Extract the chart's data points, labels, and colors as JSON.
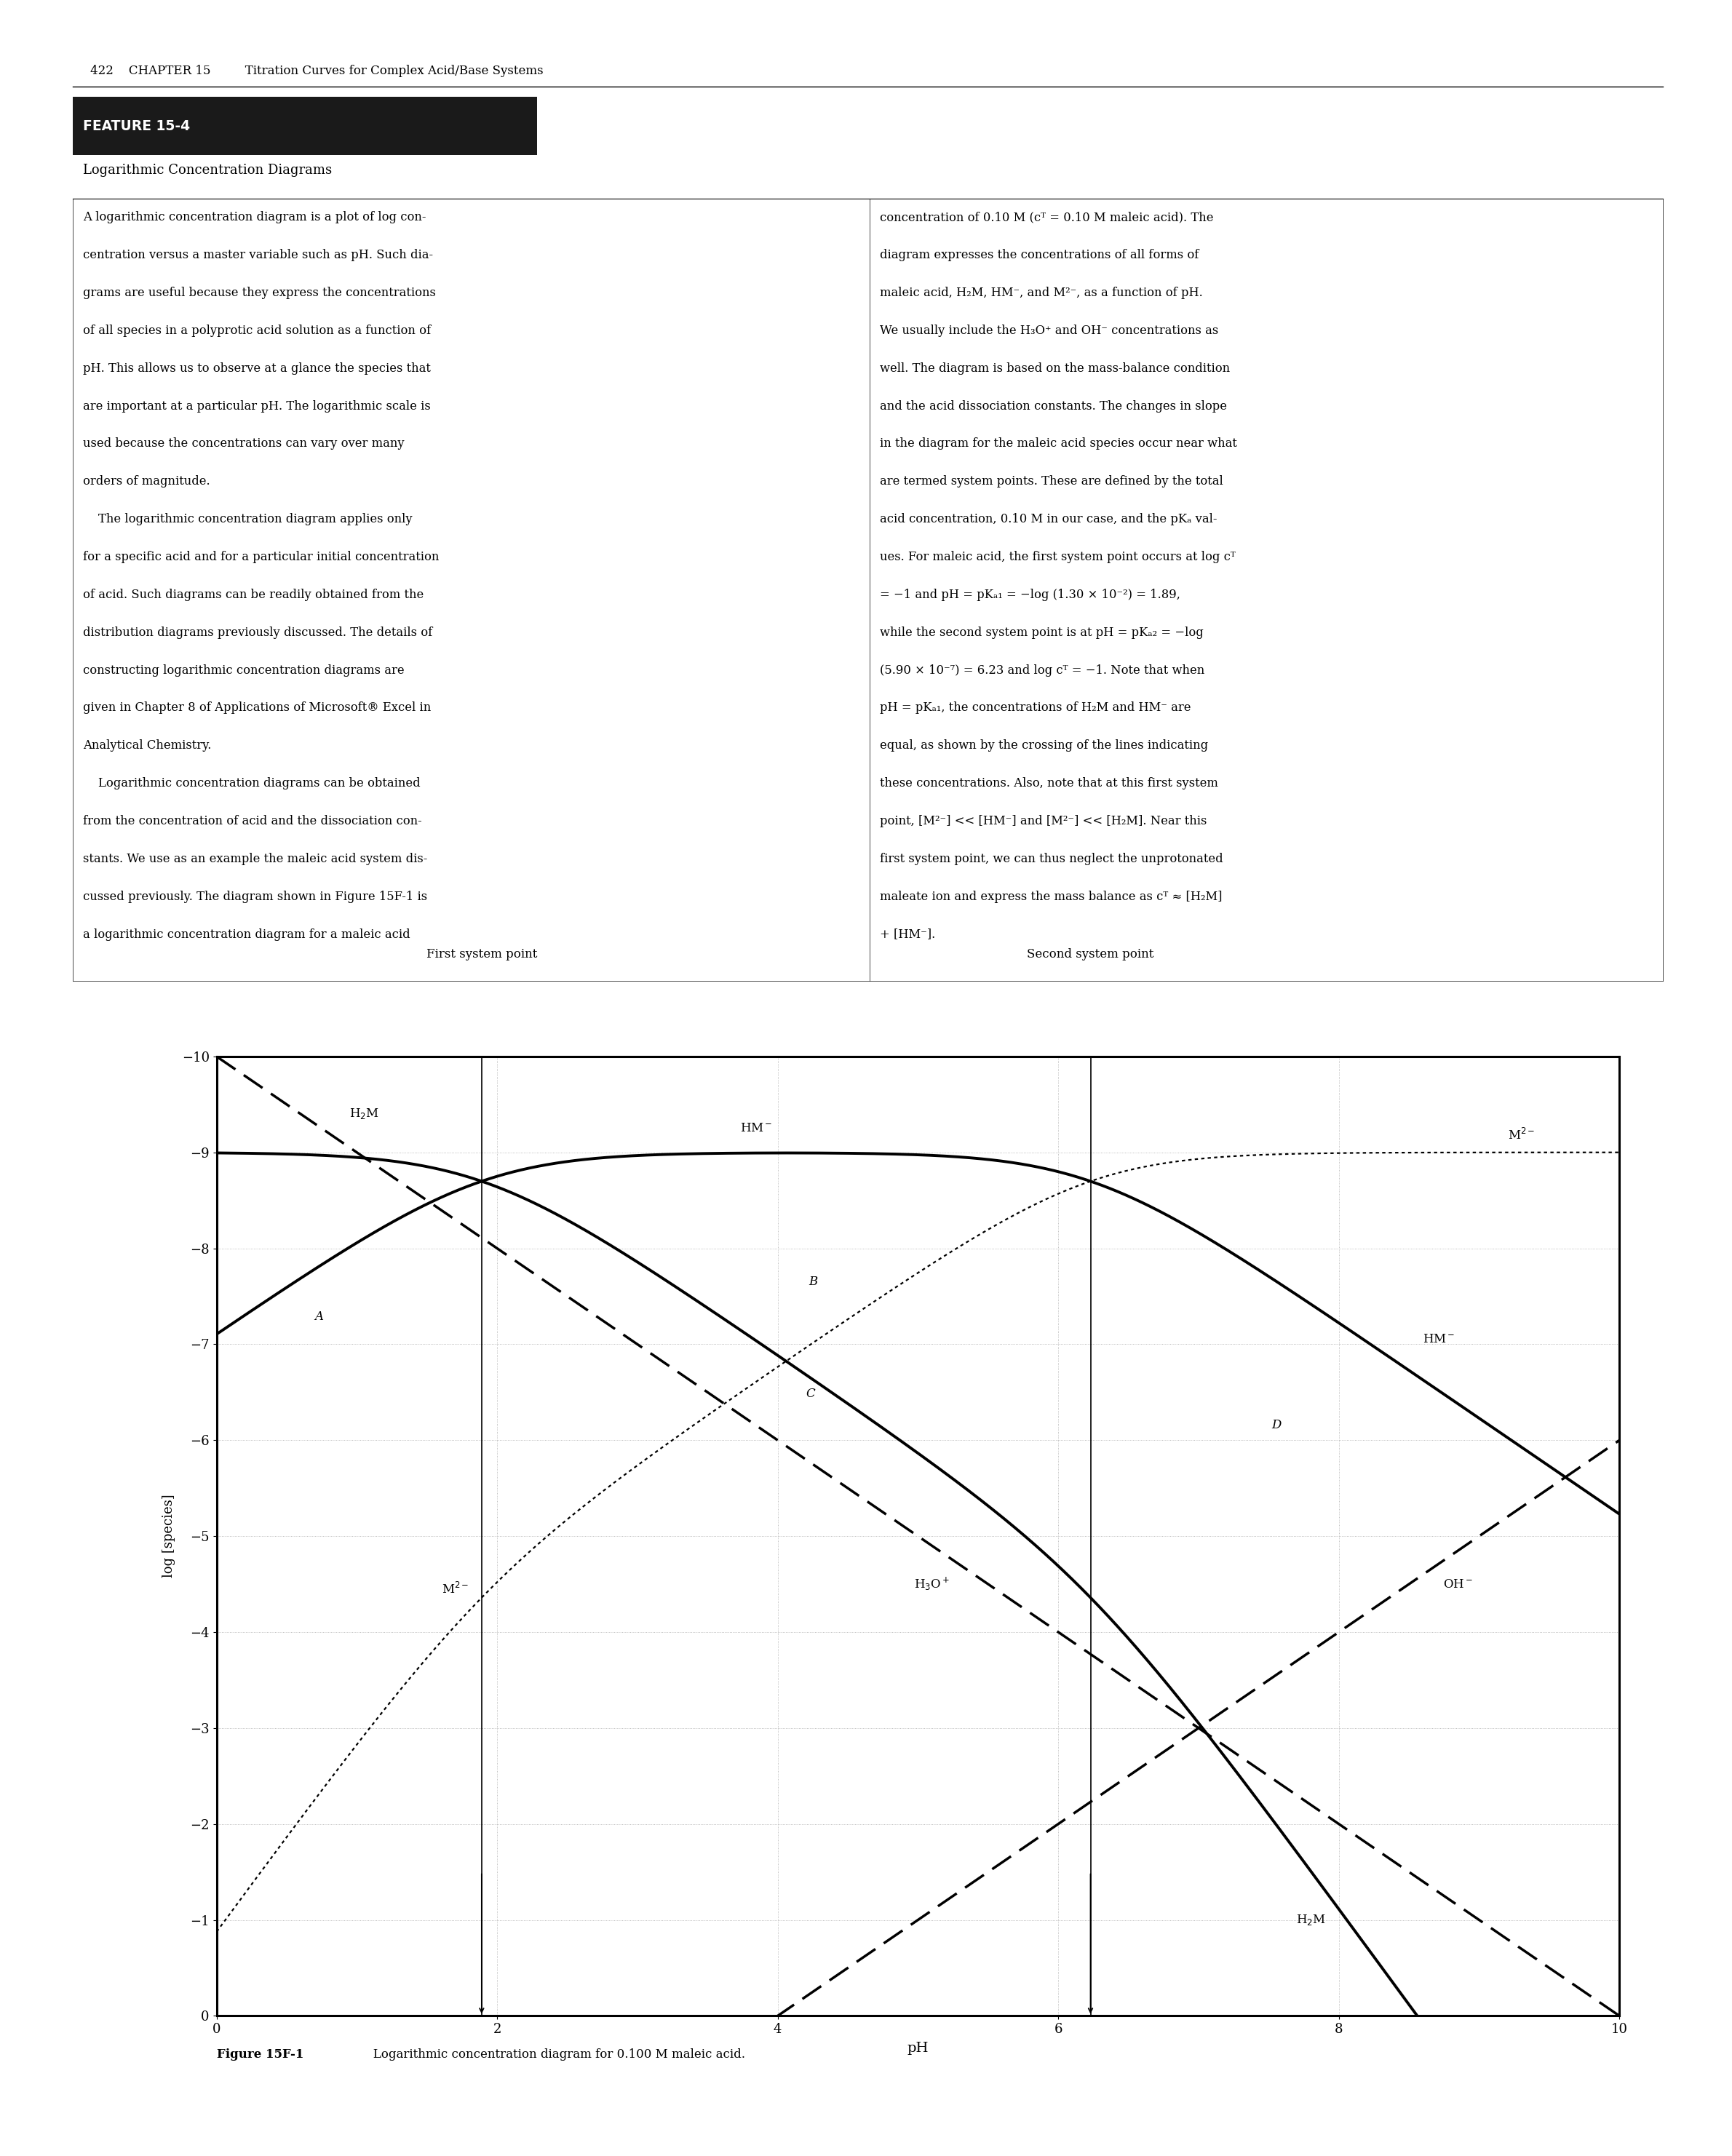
{
  "pKa1": 1.89,
  "pKa2": 6.23,
  "CT": 0.1,
  "Kw": 1e-14,
  "pH_min": 0,
  "pH_max": 10,
  "y_min": -10,
  "y_max": 0,
  "xlabel": "pH",
  "ylabel": "log [species]",
  "first_system_point_label": "First system point",
  "second_system_point_label": "Second system point",
  "page_header": "422    CHAPTER 15         Titration Curves for Complex Acid/Base Systems",
  "feature_box_label": "FEATURE 15-4",
  "feature_subtitle": "Logarithmic Concentration Diagrams",
  "left_col": [
    "A logarithmic concentration diagram is a plot of log con-",
    "centration versus a master variable such as pH. Such dia-",
    "grams are useful because they express the concentrations",
    "of all species in a polyprotic acid solution as a function of",
    "pH. This allows us to observe at a glance the species that",
    "are important at a particular pH. The logarithmic scale is",
    "used because the concentrations can vary over many",
    "orders of magnitude.",
    "    The logarithmic concentration diagram applies only",
    "for a specific acid and for a particular initial concentration",
    "of acid. Such diagrams can be readily obtained from the",
    "distribution diagrams previously discussed. The details of",
    "constructing logarithmic concentration diagrams are",
    "given in Chapter 8 of Applications of Microsoft® Excel in",
    "Analytical Chemistry.",
    "    Logarithmic concentration diagrams can be obtained",
    "from the concentration of acid and the dissociation con-",
    "stants. We use as an example the maleic acid system dis-",
    "cussed previously. The diagram shown in Figure 15F-1 is",
    "a logarithmic concentration diagram for a maleic acid"
  ],
  "right_col": [
    "concentration of 0.10 M (cᵀ = 0.10 M maleic acid). The",
    "diagram expresses the concentrations of all forms of",
    "maleic acid, H₂M, HM⁻, and M²⁻, as a function of pH.",
    "We usually include the H₃O⁺ and OH⁻ concentrations as",
    "well. The diagram is based on the mass-balance condition",
    "and the acid dissociation constants. The changes in slope",
    "in the diagram for the maleic acid species occur near what",
    "are termed system points. These are defined by the total",
    "acid concentration, 0.10 M in our case, and the pKₐ val-",
    "ues. For maleic acid, the first system point occurs at log cᵀ",
    "= −1 and pH = pKₐ₁ = −log (1.30 × 10⁻²) = 1.89,",
    "while the second system point is at pH = pKₐ₂ = −log",
    "(5.90 × 10⁻⁷) = 6.23 and log cᵀ = −1. Note that when",
    "pH = pKₐ₁, the concentrations of H₂M and HM⁻ are",
    "equal, as shown by the crossing of the lines indicating",
    "these concentrations. Also, note that at this first system",
    "point, [M²⁻] << [HM⁻] and [M²⁻] << [H₂M]. Near this",
    "first system point, we can thus neglect the unprotonated",
    "maleate ion and express the mass balance as cᵀ ≈ [H₂M]",
    "+ [HM⁻]."
  ],
  "fig_caption_bold": "Figure 15F-1",
  "fig_caption_rest": "   Logarithmic concentration diagram for 0.100 M maleic acid.",
  "background_color": "#ffffff"
}
